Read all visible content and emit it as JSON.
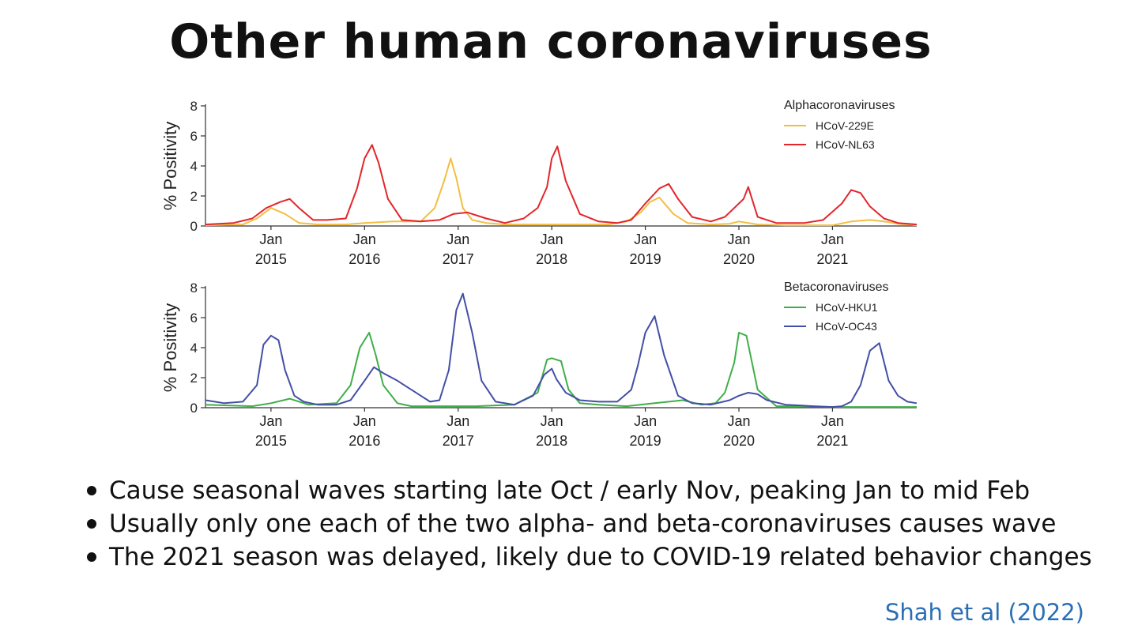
{
  "title": "Other human coronaviruses",
  "chart_data": [
    {
      "type": "line",
      "legend_title": "Alphacoronaviruses",
      "legend_position": "top-right",
      "ylabel": "% Positivity",
      "ylim": [
        0,
        8
      ],
      "yticks": [
        0,
        2,
        4,
        6,
        8
      ],
      "xlim": [
        2014.3,
        2021.9
      ],
      "xticks": [
        2015,
        2016,
        2017,
        2018,
        2019,
        2020,
        2021
      ],
      "xtick_labels": [
        [
          "Jan",
          "2015"
        ],
        [
          "Jan",
          "2016"
        ],
        [
          "Jan",
          "2017"
        ],
        [
          "Jan",
          "2018"
        ],
        [
          "Jan",
          "2019"
        ],
        [
          "Jan",
          "2020"
        ],
        [
          "Jan",
          "2021"
        ]
      ],
      "series": [
        {
          "name": "HCoV-229E",
          "color": "#f2be42",
          "x": [
            2014.3,
            2014.7,
            2014.85,
            2015.0,
            2015.15,
            2015.3,
            2015.5,
            2015.8,
            2016.0,
            2016.3,
            2016.6,
            2016.75,
            2016.85,
            2016.92,
            2016.98,
            2017.05,
            2017.15,
            2017.3,
            2017.5,
            2017.8,
            2018.0,
            2018.3,
            2018.6,
            2018.8,
            2018.95,
            2019.05,
            2019.15,
            2019.3,
            2019.45,
            2019.7,
            2019.9,
            2020.0,
            2020.2,
            2020.5,
            2020.8,
            2021.0,
            2021.2,
            2021.4,
            2021.55,
            2021.7,
            2021.9
          ],
          "y": [
            0.05,
            0.1,
            0.5,
            1.2,
            0.8,
            0.2,
            0.1,
            0.1,
            0.2,
            0.3,
            0.3,
            1.2,
            3.0,
            4.5,
            3.2,
            1.2,
            0.4,
            0.2,
            0.1,
            0.1,
            0.1,
            0.1,
            0.1,
            0.3,
            0.9,
            1.6,
            1.9,
            0.8,
            0.2,
            0.1,
            0.15,
            0.3,
            0.1,
            0.05,
            0.05,
            0.05,
            0.3,
            0.4,
            0.3,
            0.15,
            0.05
          ]
        },
        {
          "name": "HCoV-NL63",
          "color": "#e3262b",
          "x": [
            2014.3,
            2014.6,
            2014.8,
            2014.95,
            2015.1,
            2015.2,
            2015.3,
            2015.45,
            2015.6,
            2015.8,
            2015.92,
            2016.0,
            2016.08,
            2016.15,
            2016.25,
            2016.4,
            2016.6,
            2016.8,
            2016.95,
            2017.1,
            2017.3,
            2017.5,
            2017.7,
            2017.85,
            2017.95,
            2018.0,
            2018.06,
            2018.15,
            2018.3,
            2018.5,
            2018.7,
            2018.85,
            2019.0,
            2019.15,
            2019.25,
            2019.35,
            2019.5,
            2019.7,
            2019.85,
            2019.95,
            2020.05,
            2020.1,
            2020.2,
            2020.4,
            2020.7,
            2020.9,
            2021.1,
            2021.2,
            2021.3,
            2021.4,
            2021.55,
            2021.7,
            2021.9
          ],
          "y": [
            0.1,
            0.2,
            0.5,
            1.2,
            1.6,
            1.8,
            1.2,
            0.4,
            0.4,
            0.5,
            2.5,
            4.5,
            5.4,
            4.2,
            1.8,
            0.4,
            0.3,
            0.4,
            0.8,
            0.9,
            0.5,
            0.2,
            0.5,
            1.2,
            2.6,
            4.5,
            5.3,
            3.0,
            0.8,
            0.3,
            0.2,
            0.4,
            1.5,
            2.5,
            2.8,
            1.8,
            0.6,
            0.3,
            0.6,
            1.2,
            1.8,
            2.6,
            0.6,
            0.2,
            0.2,
            0.4,
            1.5,
            2.4,
            2.2,
            1.3,
            0.5,
            0.2,
            0.1
          ]
        }
      ]
    },
    {
      "type": "line",
      "legend_title": "Betacoronaviruses",
      "legend_position": "top-right",
      "ylabel": "% Positivity",
      "ylim": [
        0,
        8
      ],
      "yticks": [
        0,
        2,
        4,
        6,
        8
      ],
      "xlim": [
        2014.3,
        2021.9
      ],
      "xticks": [
        2015,
        2016,
        2017,
        2018,
        2019,
        2020,
        2021
      ],
      "xtick_labels": [
        [
          "Jan",
          "2015"
        ],
        [
          "Jan",
          "2016"
        ],
        [
          "Jan",
          "2017"
        ],
        [
          "Jan",
          "2018"
        ],
        [
          "Jan",
          "2019"
        ],
        [
          "Jan",
          "2020"
        ],
        [
          "Jan",
          "2021"
        ]
      ],
      "series": [
        {
          "name": "HCoV-HKU1",
          "color": "#3fae49",
          "x": [
            2014.3,
            2014.8,
            2015.0,
            2015.2,
            2015.4,
            2015.7,
            2015.85,
            2015.95,
            2016.05,
            2016.12,
            2016.2,
            2016.35,
            2016.5,
            2016.8,
            2017.2,
            2017.6,
            2017.85,
            2017.95,
            2018.0,
            2018.1,
            2018.18,
            2018.3,
            2018.5,
            2018.8,
            2019.1,
            2019.4,
            2019.6,
            2019.75,
            2019.85,
            2019.95,
            2020.0,
            2020.08,
            2020.2,
            2020.4,
            2020.6,
            2021.0,
            2021.5,
            2021.9
          ],
          "y": [
            0.2,
            0.1,
            0.3,
            0.6,
            0.2,
            0.3,
            1.5,
            4.0,
            5.0,
            3.5,
            1.5,
            0.3,
            0.1,
            0.1,
            0.1,
            0.2,
            1.0,
            3.2,
            3.3,
            3.1,
            1.2,
            0.3,
            0.2,
            0.1,
            0.3,
            0.5,
            0.2,
            0.3,
            1.0,
            3.0,
            5.0,
            4.8,
            1.2,
            0.1,
            0.1,
            0.05,
            0.05,
            0.05
          ]
        },
        {
          "name": "HCoV-OC43",
          "color": "#434fa6",
          "x": [
            2014.3,
            2014.5,
            2014.7,
            2014.85,
            2014.92,
            2015.0,
            2015.08,
            2015.15,
            2015.25,
            2015.35,
            2015.5,
            2015.7,
            2015.85,
            2016.0,
            2016.1,
            2016.2,
            2016.35,
            2016.5,
            2016.6,
            2016.7,
            2016.8,
            2016.9,
            2016.98,
            2017.05,
            2017.15,
            2017.25,
            2017.4,
            2017.6,
            2017.8,
            2017.92,
            2018.0,
            2018.05,
            2018.15,
            2018.3,
            2018.5,
            2018.7,
            2018.85,
            2018.92,
            2019.0,
            2019.1,
            2019.2,
            2019.35,
            2019.5,
            2019.7,
            2019.9,
            2020.0,
            2020.1,
            2020.2,
            2020.3,
            2020.5,
            2020.8,
            2021.0,
            2021.1,
            2021.2,
            2021.3,
            2021.4,
            2021.5,
            2021.6,
            2021.7,
            2021.8,
            2021.9
          ],
          "y": [
            0.5,
            0.3,
            0.4,
            1.5,
            4.2,
            4.8,
            4.5,
            2.5,
            0.8,
            0.4,
            0.2,
            0.2,
            0.5,
            1.8,
            2.7,
            2.3,
            1.8,
            1.2,
            0.8,
            0.4,
            0.5,
            2.5,
            6.5,
            7.6,
            5.0,
            1.8,
            0.4,
            0.2,
            0.8,
            2.2,
            2.6,
            1.9,
            1.0,
            0.5,
            0.4,
            0.4,
            1.2,
            2.8,
            5.0,
            6.1,
            3.5,
            0.8,
            0.3,
            0.2,
            0.5,
            0.8,
            1.0,
            0.9,
            0.5,
            0.2,
            0.1,
            0.05,
            0.1,
            0.4,
            1.5,
            3.8,
            4.3,
            1.8,
            0.8,
            0.4,
            0.3
          ]
        }
      ]
    }
  ],
  "bullets": [
    "Cause seasonal waves starting late Oct / early Nov, peaking Jan to mid Feb",
    "Usually only one each of the two alpha- and beta-coronaviruses causes wave",
    "The 2021 season was delayed, likely due to COVID-19 related behavior changes"
  ],
  "citation": "Shah et al (2022)"
}
